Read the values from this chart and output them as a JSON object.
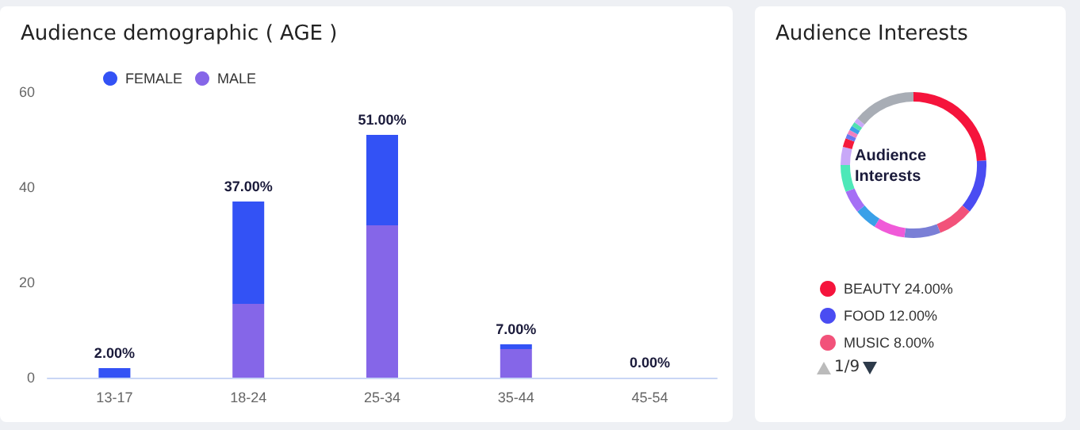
{
  "chart_data": [
    {
      "type": "bar",
      "title": "Audience demographic ( AGE )",
      "categories": [
        "13-17",
        "18-24",
        "25-34",
        "35-44",
        "45-54"
      ],
      "stacked": true,
      "series": [
        {
          "name": "MALE",
          "color": "#8566e8",
          "values": [
            0,
            15.5,
            32,
            6,
            0
          ]
        },
        {
          "name": "FEMALE",
          "color": "#3352f5",
          "values": [
            2,
            21.5,
            19,
            1,
            0
          ]
        }
      ],
      "totals": [
        "2.00%",
        "37.00%",
        "51.00%",
        "7.00%",
        "0.00%"
      ],
      "ylim": [
        0,
        60
      ],
      "yticks": [
        0,
        20,
        40,
        60
      ],
      "grid": false,
      "legend": "top left"
    },
    {
      "type": "donut",
      "title": "Audience Interests",
      "annotations": [
        "Audience Interests",
        "1/9"
      ],
      "categories": [
        "BEAUTY",
        "FOOD",
        "MUSIC",
        null,
        null,
        null,
        null,
        null,
        null,
        null,
        null,
        null,
        null,
        null,
        null,
        null
      ],
      "values": [
        24,
        12,
        8,
        8,
        7,
        5,
        5,
        6,
        4,
        2,
        1,
        1,
        1,
        1,
        1,
        14
      ],
      "value_labels": [
        "24.00%",
        "12.00%",
        "8.00%",
        null,
        null,
        null,
        null,
        null,
        null,
        null,
        null,
        null,
        null,
        null,
        null,
        null
      ],
      "colors": [
        "#f5143c",
        "#4a4cf2",
        "#f2527a",
        "#7a7fd6",
        "#f05ad8",
        "#3aa0e8",
        "#a56ff5",
        "#4de8b8",
        "#c8a8f8",
        "#f51a3c",
        "#6878f0",
        "#f080c0",
        "#3aa0e8",
        "#50e0b0",
        "#c8a8f8",
        "#a8adb5"
      ],
      "legend": "bottom left"
    }
  ]
}
